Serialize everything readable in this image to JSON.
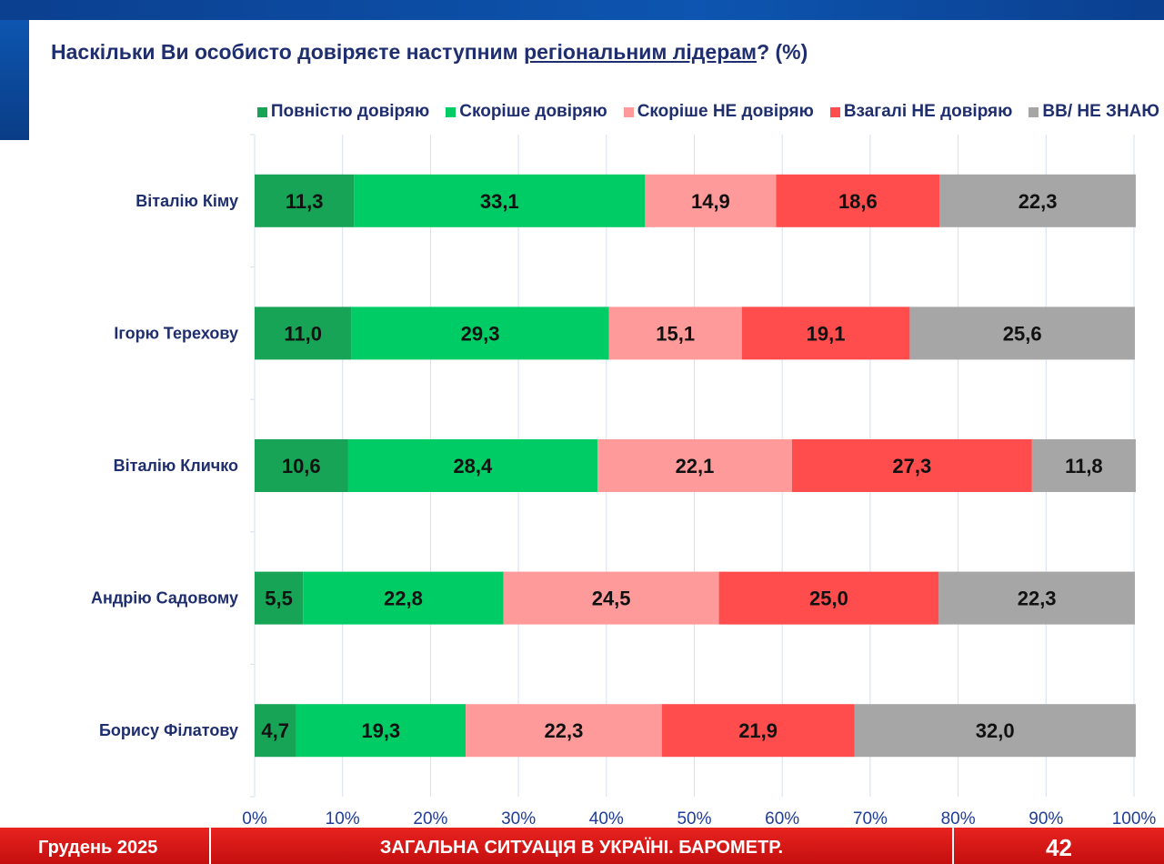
{
  "title": {
    "prefix": "Наскільки Ви особисто довіряєте наступним ",
    "underlined": "регіональним лідерам",
    "suffix": "? (%)"
  },
  "legend": [
    {
      "label": "Повністю довіряю",
      "color": "#17a457"
    },
    {
      "label": "Скоріше довіряю",
      "color": "#00cc66"
    },
    {
      "label": "Скоріше НЕ довіряю",
      "color": "#ff9a9a"
    },
    {
      "label": "Взагалі НЕ  довіряю",
      "color": "#ff4d4d"
    },
    {
      "label": "ВВ/ НЕ ЗНАЮ",
      "color": "#a6a6a6"
    }
  ],
  "chart_data": {
    "type": "bar",
    "orientation": "horizontal",
    "stacked": true,
    "categories": [
      "Віталію Кіму",
      "Ігорю Терехову",
      "Віталію Кличко",
      "Андрію Садовому",
      "Борису Філатову"
    ],
    "series": [
      {
        "name": "Повністю довіряю",
        "values": [
          "11,3",
          "11,0",
          "10,6",
          "5,5",
          "4,7"
        ],
        "color": "#17a457"
      },
      {
        "name": "Скоріше довіряю",
        "values": [
          "33,1",
          "29,3",
          "28,4",
          "22,8",
          "19,3"
        ],
        "color": "#00cc66"
      },
      {
        "name": "Скоріше НЕ довіряю",
        "values": [
          "14,9",
          "15,1",
          "22,1",
          "24,5",
          "22,3"
        ],
        "color": "#ff9a9a"
      },
      {
        "name": "Взагалі НЕ  довіряю",
        "values": [
          "18,6",
          "19,1",
          "27,3",
          "25,0",
          "21,9"
        ],
        "color": "#ff4d4d"
      },
      {
        "name": "ВВ/ НЕ ЗНАЮ",
        "values": [
          "22,3",
          "25,6",
          "11,8",
          "22,3",
          "32,0"
        ],
        "color": "#a6a6a6"
      }
    ],
    "x_ticks": [
      "0%",
      "10%",
      "20%",
      "30%",
      "40%",
      "50%",
      "60%",
      "70%",
      "80%",
      "90%",
      "100%"
    ],
    "xlim": [
      0,
      100
    ],
    "grid": true,
    "legend_position": "top"
  },
  "footer": {
    "date": "Грудень 2025",
    "center": "ЗАГАЛЬНА СИТУАЦІЯ В УКРАЇНІ. БАРОМЕТР.",
    "page": "42"
  }
}
